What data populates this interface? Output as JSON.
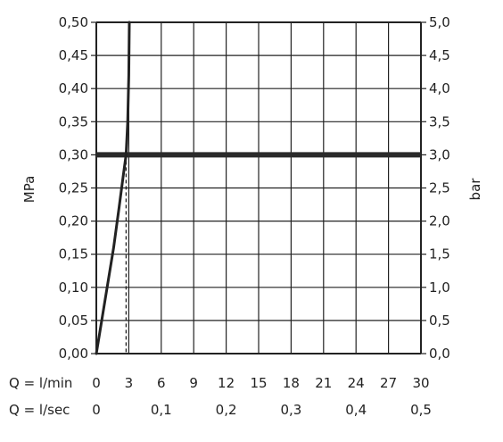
{
  "chart_data": {
    "type": "line",
    "left_axis": {
      "label": "MPa",
      "range": [
        0,
        0.5
      ],
      "ticks": [
        "0,00",
        "0,05",
        "0,10",
        "0,15",
        "0,20",
        "0,25",
        "0,30",
        "0,35",
        "0,40",
        "0,45",
        "0,50"
      ]
    },
    "right_axis": {
      "label": "bar",
      "range": [
        0,
        5.0
      ],
      "ticks": [
        "0,0",
        "0,5",
        "1,0",
        "1,5",
        "2,0",
        "2,5",
        "3,0",
        "3,5",
        "4,0",
        "4,5",
        "5,0"
      ]
    },
    "x_axis_lmin": {
      "label": "Q = l/min",
      "range": [
        0,
        30
      ],
      "ticks": [
        "0",
        "3",
        "6",
        "9",
        "12",
        "15",
        "18",
        "21",
        "24",
        "27",
        "30"
      ]
    },
    "x_axis_lsec": {
      "label": "Q = l/sec",
      "ticks": [
        "0",
        "0,1",
        "0,2",
        "0,3",
        "0,4",
        "0,5"
      ],
      "tick_values_lmin": [
        0,
        6,
        12,
        18,
        24,
        30
      ]
    },
    "series": [
      {
        "x": [
          0,
          1,
          1.6,
          2.1,
          2.5,
          2.75,
          2.9,
          3.0,
          3.05
        ],
        "y": [
          0,
          0.1,
          0.16,
          0.22,
          0.27,
          0.3,
          0.35,
          0.42,
          0.5
        ]
      }
    ],
    "reference_line_y": 0.3,
    "reference_drop_x": 2.75,
    "grid": true
  }
}
